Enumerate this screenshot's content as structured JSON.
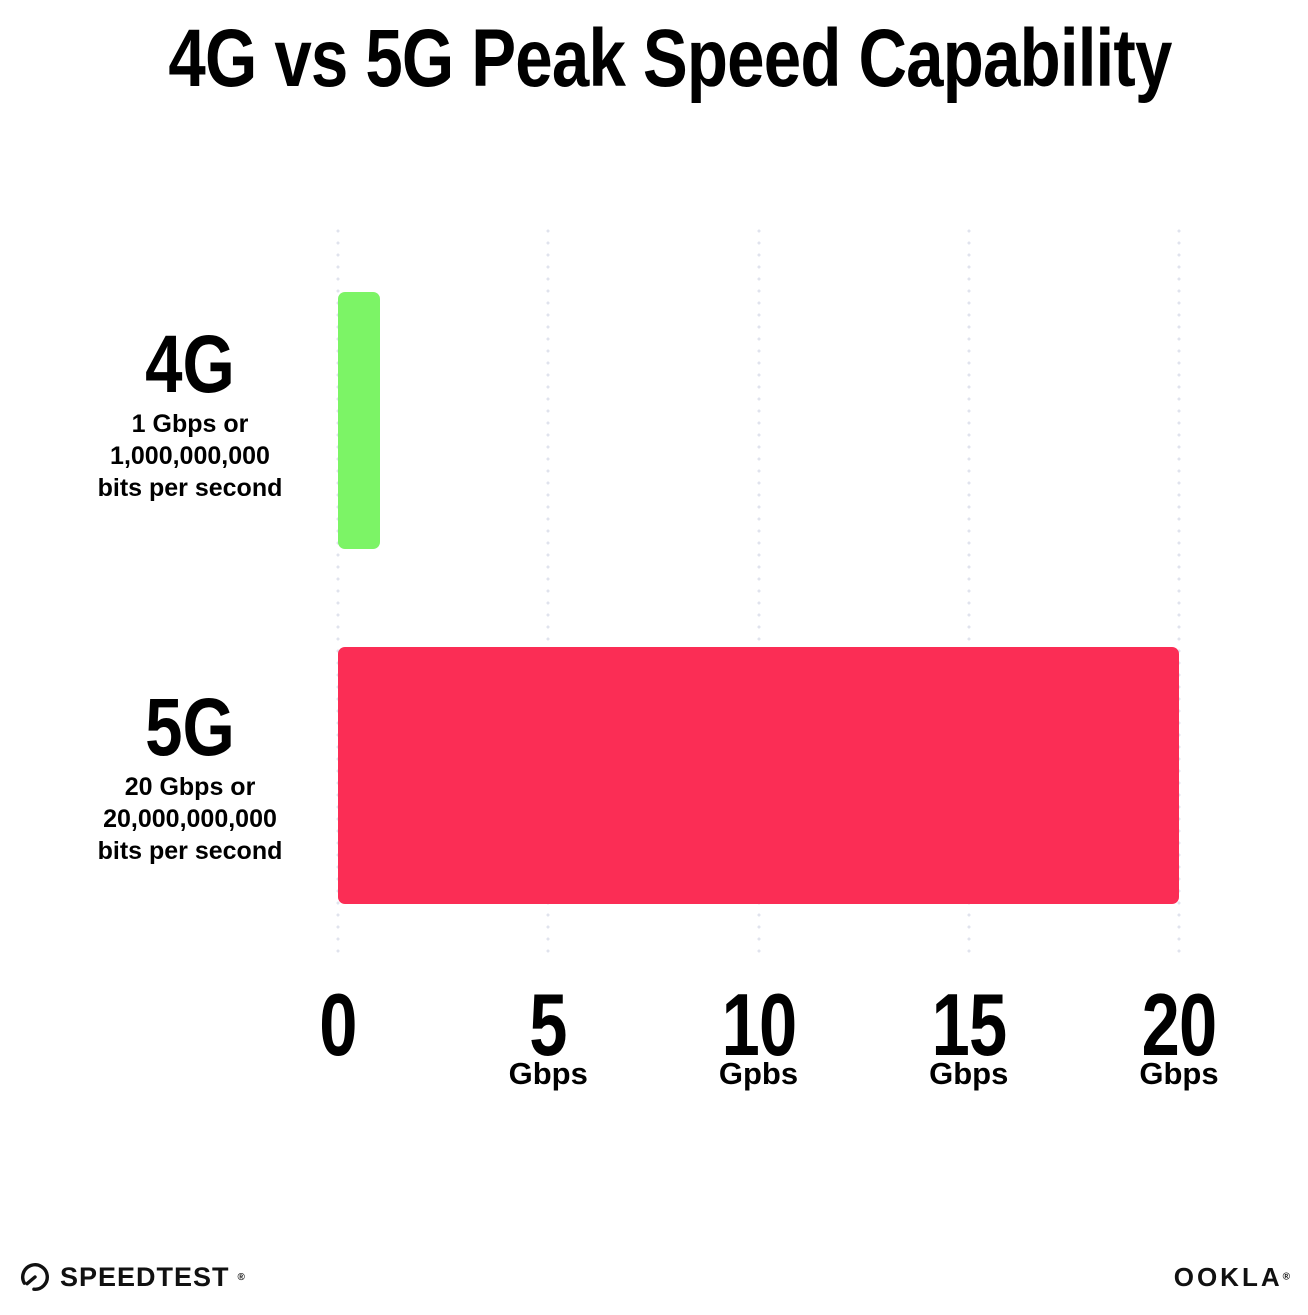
{
  "title": "4G vs 5G Peak Speed Capability",
  "chart_data": {
    "type": "bar",
    "orientation": "horizontal",
    "title": "4G vs 5G Peak Speed Capability",
    "categories": [
      "4G",
      "5G"
    ],
    "series": [
      {
        "name": "Peak speed capability (Gbps)",
        "values": [
          1,
          20
        ]
      }
    ],
    "category_sublabels": [
      [
        "1 Gbps or",
        "1,000,000,000",
        "bits per second"
      ],
      [
        "20 Gbps or",
        "20,000,000,000",
        "bits per second"
      ]
    ],
    "bar_colors": [
      "#7CF466",
      "#FB2D55"
    ],
    "xlim": [
      0,
      20
    ],
    "x_ticks": [
      {
        "value": 0,
        "label": "0",
        "unit": ""
      },
      {
        "value": 5,
        "label": "5",
        "unit": "Gbps"
      },
      {
        "value": 10,
        "label": "10",
        "unit": "Gpbs"
      },
      {
        "value": 15,
        "label": "15",
        "unit": "Gbps"
      },
      {
        "value": 20,
        "label": "20",
        "unit": "Gbps"
      }
    ],
    "grid": "vertical-dotted",
    "legend": "none"
  },
  "footer": {
    "speedtest": {
      "label": "SPEEDTEST",
      "mark": "®",
      "icon": "speedtest-gauge-icon"
    },
    "ookla": {
      "label": "OOKLA",
      "mark": "®"
    }
  },
  "colors": {
    "background": "#FFFFFF",
    "text": "#000000",
    "gridline": "#E0E3ED",
    "bar_4g": "#7CF466",
    "bar_5g": "#FB2D55"
  }
}
